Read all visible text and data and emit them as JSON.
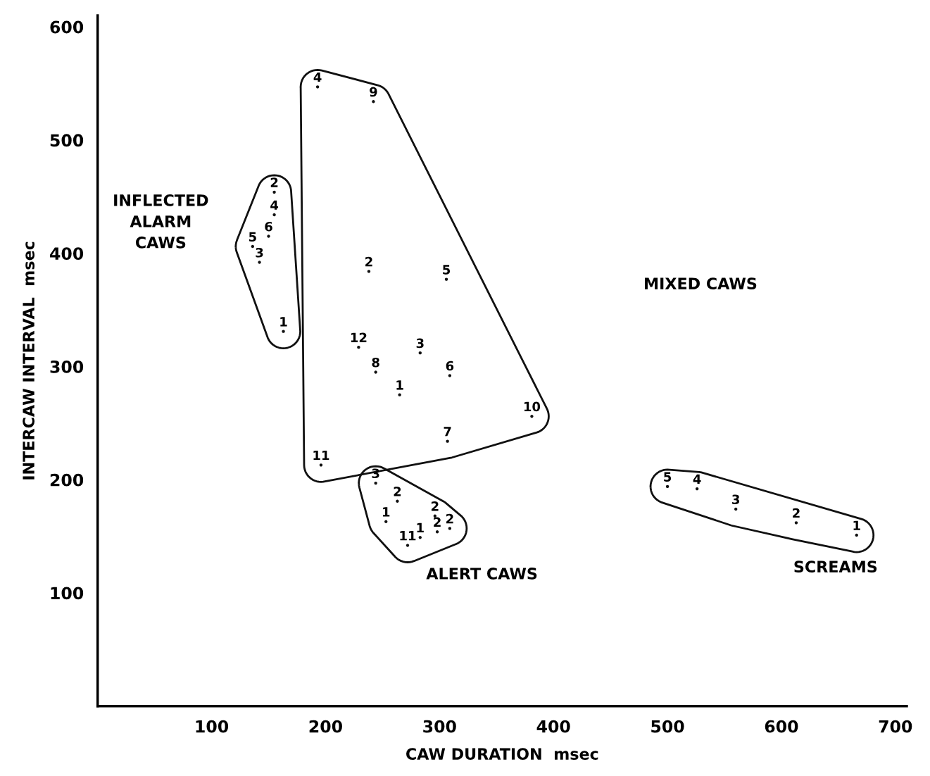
{
  "chart_data": {
    "type": "scatter",
    "xlabel": "CAW DURATION  msec",
    "ylabel": "INTERCAW INTERVAL  msec",
    "xlim": [
      0,
      710
    ],
    "ylim": [
      0,
      610
    ],
    "xticks": [
      100,
      200,
      300,
      400,
      500,
      600,
      700
    ],
    "yticks": [
      100,
      200,
      300,
      400,
      500,
      600
    ],
    "grid": false,
    "legend": false,
    "marker": "circle",
    "series": [
      {
        "color": "#111111",
        "x": [
          155,
          155,
          150,
          136,
          142,
          163
        ],
        "values": [
          454,
          434,
          415,
          406,
          392,
          331
        ]
      },
      {
        "color": "#111111",
        "x": [
          193,
          242,
          238,
          306,
          229,
          283,
          244,
          309,
          265,
          381,
          307,
          196
        ],
        "values": [
          547,
          534,
          384,
          377,
          317,
          312,
          295,
          292,
          275,
          256,
          234,
          213
        ]
      },
      {
        "color": "#111111",
        "x": [
          244,
          263,
          253,
          296,
          298,
          309,
          283,
          272
        ],
        "values": [
          197,
          181,
          163,
          168,
          154,
          157,
          149,
          142
        ]
      },
      {
        "color": "#111111",
        "x": [
          500,
          526,
          560,
          613,
          666
        ],
        "values": [
          194,
          192,
          174,
          162,
          151
        ]
      }
    ],
    "annotations": [
      "INFLECTED\nALARM\nCAWS",
      "MIXED CAWS",
      "ALERT CAWS",
      "SCREAMS",
      {
        "text": "2",
        "x": 155,
        "y": 454
      },
      {
        "text": "4",
        "x": 155,
        "y": 434
      },
      {
        "text": "6",
        "x": 150,
        "y": 415
      },
      {
        "text": "5",
        "x": 136,
        "y": 406
      },
      {
        "text": "3",
        "x": 142,
        "y": 392
      },
      {
        "text": "1",
        "x": 163,
        "y": 331
      },
      {
        "text": "4",
        "x": 193,
        "y": 547
      },
      {
        "text": "9",
        "x": 242,
        "y": 534
      },
      {
        "text": "2",
        "x": 238,
        "y": 384
      },
      {
        "text": "5",
        "x": 306,
        "y": 377
      },
      {
        "text": "12",
        "x": 229,
        "y": 317
      },
      {
        "text": "3",
        "x": 283,
        "y": 312
      },
      {
        "text": "8",
        "x": 244,
        "y": 295
      },
      {
        "text": "6",
        "x": 309,
        "y": 292
      },
      {
        "text": "1",
        "x": 265,
        "y": 275
      },
      {
        "text": "10",
        "x": 381,
        "y": 256
      },
      {
        "text": "7",
        "x": 307,
        "y": 234
      },
      {
        "text": "11",
        "x": 196,
        "y": 213
      },
      {
        "text": "3",
        "x": 244,
        "y": 197
      },
      {
        "text": "2",
        "x": 263,
        "y": 181
      },
      {
        "text": "1",
        "x": 253,
        "y": 163
      },
      {
        "text": "2",
        "x": 296,
        "y": 168
      },
      {
        "text": "2",
        "x": 298,
        "y": 154
      },
      {
        "text": "2",
        "x": 309,
        "y": 157
      },
      {
        "text": "1",
        "x": 283,
        "y": 149
      },
      {
        "text": "11",
        "x": 272,
        "y": 142
      },
      {
        "text": "5",
        "x": 500,
        "y": 194
      },
      {
        "text": "4",
        "x": 526,
        "y": 192
      },
      {
        "text": "3",
        "x": 560,
        "y": 174
      },
      {
        "text": "2",
        "x": 613,
        "y": 162
      },
      {
        "text": "1",
        "x": 666,
        "y": 151
      }
    ]
  }
}
